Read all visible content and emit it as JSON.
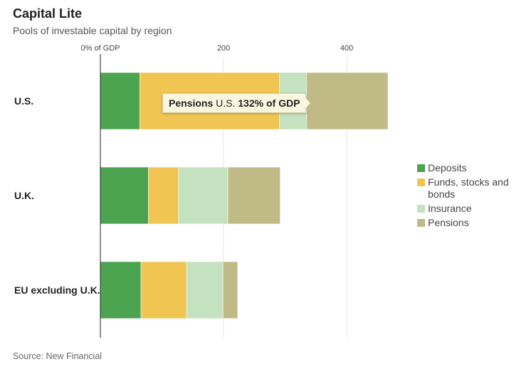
{
  "title": "Capital Lite",
  "subtitle": "Pools of investable capital by region",
  "source": "Source: New Financial",
  "tooltip": {
    "series": "Pensions",
    "category": "U.S.",
    "value": "132% of GDP"
  },
  "chart_data": {
    "type": "bar",
    "orientation": "horizontal",
    "stacked": true,
    "categories": [
      "U.S.",
      "U.K.",
      "EU excluding U.K."
    ],
    "series": [
      {
        "name": "Deposits",
        "color": "#4ca451",
        "values": [
          64,
          78,
          66
        ]
      },
      {
        "name": "Funds, stocks and bonds",
        "color": "#f0c552",
        "values": [
          227,
          49,
          74
        ]
      },
      {
        "name": "Insurance",
        "color": "#c4e2bf",
        "values": [
          44,
          80,
          59
        ]
      },
      {
        "name": "Pensions",
        "color": "#c0ba86",
        "values": [
          132,
          85,
          24
        ]
      }
    ],
    "x_ticks": [
      {
        "value": 0,
        "label": "0% of GDP"
      },
      {
        "value": 200,
        "label": "200"
      },
      {
        "value": 400,
        "label": "400"
      }
    ],
    "xlim": [
      0,
      400
    ],
    "grid": true,
    "legend_position": "right"
  }
}
